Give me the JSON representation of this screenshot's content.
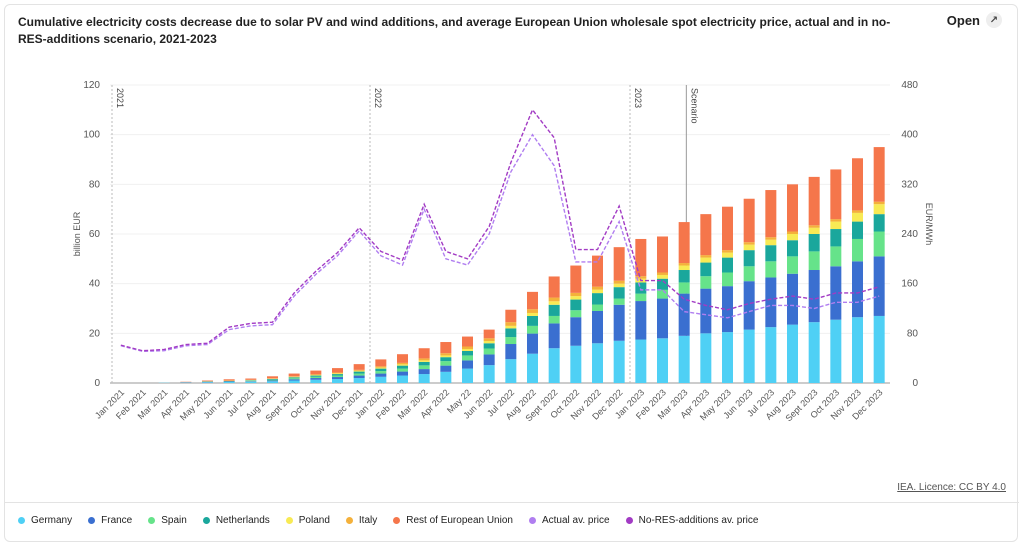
{
  "header": {
    "title": "Cumulative electricity costs decrease due to solar PV and wind additions, and average European Union wholesale spot electricity price, actual and in no-RES-additions scenario, 2021-2023",
    "open_label": "Open"
  },
  "footer": {
    "licence": "IEA. Licence: CC BY 4.0"
  },
  "colors": {
    "Germany": "#4fd0f5",
    "France": "#3a6fd0",
    "Spain": "#66e38a",
    "Netherlands": "#1aa79c",
    "Poland": "#f8ea54",
    "Italy": "#f4b13b",
    "Rest of European Union": "#f5764b",
    "Actual av. price": "#b07ef0",
    "No-RES-additions av. price": "#a23bc4",
    "axis": "#555555",
    "grid": "#f0f0f0"
  },
  "legend": [
    {
      "label": "Germany",
      "color": "#4fd0f5"
    },
    {
      "label": "France",
      "color": "#3a6fd0"
    },
    {
      "label": "Spain",
      "color": "#66e38a"
    },
    {
      "label": "Netherlands",
      "color": "#1aa79c"
    },
    {
      "label": "Poland",
      "color": "#f8ea54"
    },
    {
      "label": "Italy",
      "color": "#f4b13b"
    },
    {
      "label": "Rest of European Union",
      "color": "#f5764b"
    },
    {
      "label": "Actual av. price",
      "color": "#b07ef0"
    },
    {
      "label": "No-RES-additions av. price",
      "color": "#a23bc4"
    }
  ],
  "chart_data": {
    "type": "bar",
    "stacked": true,
    "title": "Cumulative electricity costs decrease due to solar PV and wind additions, and average European Union wholesale spot electricity price, actual and in no-RES-additions scenario, 2021-2023",
    "xlabel": "",
    "ylabel": "billion EUR",
    "y2label": "EUR/MWh",
    "ylim": [
      0,
      120
    ],
    "y2lim": [
      0,
      480
    ],
    "yticks": [
      "0",
      "20",
      "40",
      "60",
      "80",
      "100",
      "120"
    ],
    "y2ticks": [
      "0",
      "80",
      "160",
      "240",
      "320",
      "400",
      "480"
    ],
    "categories": [
      "Jan 2021",
      "Feb 2021",
      "Mar 2021",
      "Apr 2021",
      "May 2021",
      "Jun 2021",
      "Jul 2021",
      "Aug 2021",
      "Sept 2021",
      "Oct 2021",
      "Nov 2021",
      "Dec 2021",
      "Jan 2022",
      "Feb 2022",
      "Mar 2022",
      "Apr 2022",
      "May 22",
      "Jun 2022",
      "Jul 2022",
      "Aug 2022",
      "Sept 2022",
      "Oct 2022",
      "Nov 2022",
      "Dec 2022",
      "Jan 2023",
      "Feb 2023",
      "Mar 2023",
      "Apr 2023",
      "May 2023",
      "Jun 2023",
      "Jul 2023",
      "Aug 2023",
      "Sept 2023",
      "Oct 2023",
      "Nov 2023",
      "Dec 2023"
    ],
    "series": [
      {
        "name": "Germany",
        "axis": "left",
        "values": [
          0,
          0,
          0.1,
          0.2,
          0.3,
          0.4,
          0.5,
          0.7,
          1.0,
          1.3,
          1.6,
          2.0,
          2.5,
          3.0,
          3.6,
          4.5,
          5.8,
          7.2,
          9.6,
          11.8,
          14.0,
          15.0,
          16.0,
          17.0,
          17.5,
          18.0,
          19.0,
          20.0,
          20.5,
          21.5,
          22.5,
          23.5,
          24.5,
          25.5,
          26.5,
          27.0
        ]
      },
      {
        "name": "France",
        "axis": "left",
        "values": [
          0,
          0,
          0,
          0.1,
          0.1,
          0.2,
          0.2,
          0.3,
          0.5,
          0.7,
          0.8,
          1.0,
          1.3,
          1.6,
          2.0,
          2.5,
          3.3,
          4.3,
          6.1,
          8.1,
          10.0,
          11.5,
          13.0,
          14.5,
          15.5,
          16.0,
          17.0,
          18.0,
          18.5,
          19.5,
          20.0,
          20.5,
          21.0,
          21.5,
          22.5,
          24.0
        ]
      },
      {
        "name": "Spain",
        "axis": "left",
        "values": [
          0,
          0,
          0,
          0,
          0.1,
          0.1,
          0.2,
          0.3,
          0.4,
          0.5,
          0.6,
          0.8,
          1.0,
          1.2,
          1.5,
          1.8,
          2.0,
          2.4,
          2.8,
          3.1,
          3.0,
          2.8,
          2.6,
          2.5,
          3.0,
          3.5,
          4.5,
          5.0,
          5.5,
          6.0,
          6.5,
          7.0,
          7.5,
          8.0,
          9.0,
          10.0
        ]
      },
      {
        "name": "Netherlands",
        "axis": "left",
        "values": [
          0,
          0,
          0,
          0,
          0.1,
          0.1,
          0.2,
          0.3,
          0.4,
          0.5,
          0.6,
          0.8,
          1.0,
          1.2,
          1.4,
          1.6,
          1.8,
          2.1,
          3.5,
          4.0,
          4.5,
          4.3,
          4.6,
          4.6,
          4.5,
          4.5,
          5.0,
          5.5,
          6.0,
          6.5,
          6.5,
          6.5,
          7.0,
          7.0,
          7.0,
          7.0
        ]
      },
      {
        "name": "Poland",
        "axis": "left",
        "values": [
          0,
          0,
          0,
          0,
          0,
          0.1,
          0.1,
          0.1,
          0.2,
          0.2,
          0.3,
          0.3,
          0.4,
          0.5,
          0.6,
          0.7,
          0.8,
          0.9,
          1.0,
          1.2,
          1.4,
          1.4,
          1.4,
          1.4,
          1.5,
          1.5,
          1.8,
          2.0,
          2.0,
          2.2,
          2.2,
          2.5,
          2.5,
          3.0,
          3.5,
          4.0
        ]
      },
      {
        "name": "Italy",
        "axis": "left",
        "values": [
          0,
          0,
          0,
          0,
          0.1,
          0.1,
          0.1,
          0.2,
          0.2,
          0.3,
          0.3,
          0.4,
          0.5,
          0.6,
          0.8,
          0.9,
          1.0,
          1.1,
          1.5,
          1.5,
          1.5,
          1.3,
          1.2,
          1.2,
          1.0,
          1.0,
          1.0,
          1.0,
          1.0,
          1.0,
          1.0,
          1.0,
          1.0,
          1.0,
          1.0,
          1.0
        ]
      },
      {
        "name": "Rest of European Union",
        "axis": "left",
        "values": [
          0,
          0,
          0,
          0.2,
          0.3,
          0.5,
          0.5,
          0.8,
          1.1,
          1.5,
          1.8,
          2.3,
          2.8,
          3.5,
          4.1,
          4.5,
          4.0,
          3.5,
          5.0,
          7.0,
          8.5,
          11.0,
          12.5,
          13.5,
          15.0,
          14.5,
          16.5,
          16.5,
          17.5,
          17.5,
          19.0,
          19.0,
          19.5,
          20.0,
          21.0,
          22.0
        ]
      },
      {
        "name": "Actual av. price",
        "axis": "right",
        "type": "line",
        "values": [
          60,
          51,
          52,
          60,
          62,
          86,
          92,
          94,
          140,
          175,
          205,
          245,
          205,
          190,
          280,
          200,
          190,
          240,
          340,
          400,
          350,
          195,
          195,
          260,
          150,
          150,
          115,
          110,
          105,
          115,
          125,
          125,
          120,
          130,
          130,
          140
        ]
      },
      {
        "name": "No-RES-additions av. price",
        "axis": "right",
        "type": "line",
        "values": [
          61,
          52,
          54,
          62,
          64,
          90,
          96,
          98,
          145,
          180,
          210,
          250,
          212,
          198,
          288,
          212,
          200,
          252,
          355,
          440,
          395,
          215,
          215,
          285,
          165,
          165,
          135,
          125,
          118,
          128,
          135,
          140,
          135,
          145,
          145,
          155
        ]
      }
    ],
    "annotations": [
      "2021",
      "2022",
      "2023",
      "Scenario"
    ]
  }
}
